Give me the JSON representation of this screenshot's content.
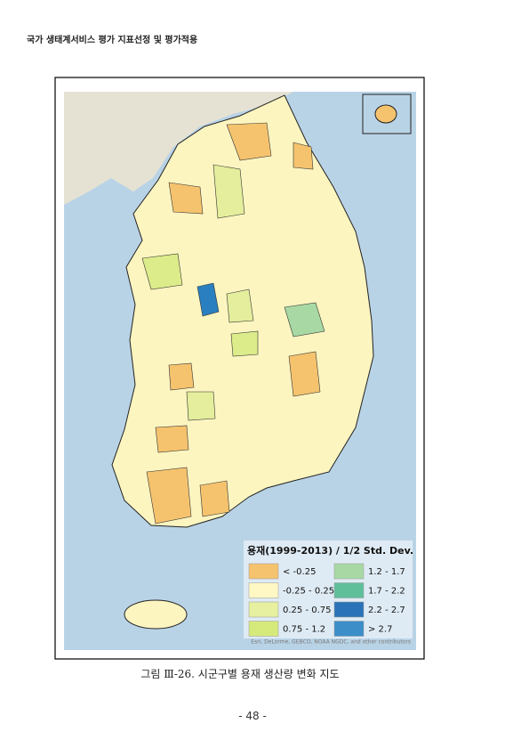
{
  "header": {
    "title": "국가 생태계서비스 평가 지표선정 및 평가적용"
  },
  "map": {
    "legend": {
      "title": "용재(1999-2013) / 1/2 Std. Dev.",
      "items": [
        {
          "label": "< -0.25",
          "color": "#f5c36e"
        },
        {
          "label": "-0.25 - 0.25",
          "color": "#fff8c4"
        },
        {
          "label": "0.25 - 0.75",
          "color": "#e6f0a0"
        },
        {
          "label": "0.75 - 1.2",
          "color": "#d6ea7c"
        },
        {
          "label": "1.2 - 1.7",
          "color": "#a8d9a4"
        },
        {
          "label": "1.7 - 2.2",
          "color": "#5fbf9b"
        },
        {
          "label": "2.2 - 2.7",
          "color": "#2a73b8"
        },
        {
          "label": "> 2.7",
          "color": "#3b8ec8"
        }
      ]
    },
    "attribution": "Esri, DeLorme, GEBCO, NOAA NGDC, and other contributors"
  },
  "figure": {
    "caption": "그림 Ⅲ-26. 시군구별 용재 생산량 변화 지도"
  },
  "footer": {
    "page": "- 48 -"
  }
}
